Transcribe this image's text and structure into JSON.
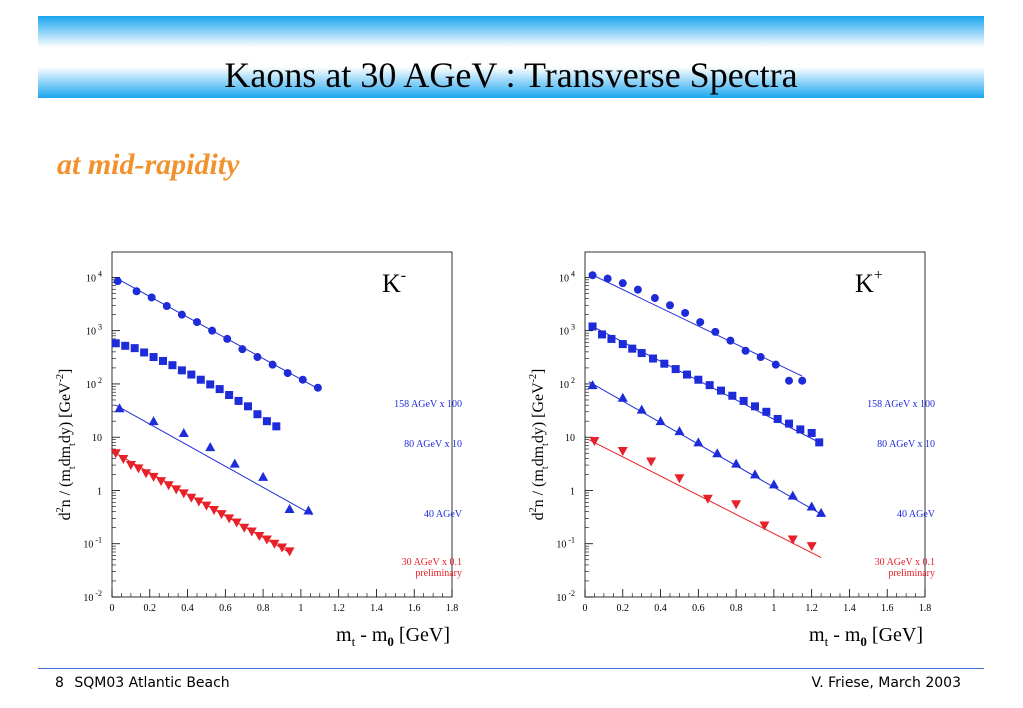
{
  "slide": {
    "title": "Kaons at 30 AGeV : Transverse Spectra",
    "subtitle": "at mid-rapidity",
    "page_number": "8",
    "conference": "SQM03 Atlantic Beach",
    "author_date": "V. Friese, March 2003"
  },
  "colors": {
    "blue": "#1e2bd9",
    "red": "#e8202a",
    "title_gradient": "#1aa5f0",
    "subtitle": "#f0922e"
  },
  "chart_data": [
    {
      "type": "scatter",
      "particle_label": "K",
      "particle_charge": "-",
      "ylabel": "d2n / (mtdmtdy) [GeV-2]",
      "xlabel": "mt - m0 [GeV]",
      "xlim": [
        0,
        1.8
      ],
      "ylim": [
        0.01,
        30000
      ],
      "y_scale": "log",
      "x_ticks": [
        "0",
        "0.2",
        "0.4",
        "0.6",
        "0.8",
        "1",
        "1.2",
        "1.4",
        "1.6",
        "1.8"
      ],
      "y_ticks": [
        {
          "mant": "10",
          "exp": "-2"
        },
        {
          "mant": "10",
          "exp": "-1"
        },
        {
          "mant": "1",
          "exp": ""
        },
        {
          "mant": "10",
          "exp": ""
        },
        {
          "mant": "10",
          "exp": "2"
        },
        {
          "mant": "10",
          "exp": "3"
        },
        {
          "mant": "10",
          "exp": "4"
        }
      ],
      "series": [
        {
          "name": "158 AGeV x 100",
          "marker": "circle",
          "color": "#1e2bd9",
          "x": [
            0.03,
            0.13,
            0.21,
            0.29,
            0.37,
            0.45,
            0.53,
            0.61,
            0.69,
            0.77,
            0.85,
            0.93,
            1.01,
            1.09
          ],
          "y": [
            8500,
            5500,
            4200,
            2900,
            2000,
            1450,
            1000,
            700,
            450,
            320,
            230,
            160,
            120,
            85
          ],
          "fit": [
            [
              0.02,
              9800
            ],
            [
              1.09,
              82
            ]
          ]
        },
        {
          "name": "80 AGeV x 10",
          "marker": "square",
          "color": "#1e2bd9",
          "x": [
            0.02,
            0.07,
            0.12,
            0.17,
            0.22,
            0.27,
            0.32,
            0.37,
            0.42,
            0.47,
            0.52,
            0.57,
            0.62,
            0.67,
            0.72,
            0.77,
            0.82,
            0.87
          ],
          "y": [
            580,
            520,
            470,
            390,
            320,
            270,
            225,
            180,
            150,
            120,
            98,
            80,
            62,
            48,
            38,
            27,
            20,
            16
          ]
        },
        {
          "name": "40 AGeV",
          "marker": "triangle-up",
          "color": "#1e2bd9",
          "x": [
            0.04,
            0.22,
            0.38,
            0.52,
            0.65,
            0.8,
            0.94,
            1.04
          ],
          "y": [
            35,
            20,
            12,
            6.5,
            3.2,
            1.8,
            0.45,
            0.42
          ],
          "fit": [
            [
              0.02,
              40
            ],
            [
              1.06,
              0.35
            ]
          ]
        },
        {
          "name": "30 AGeV x 0.1",
          "note": "preliminary",
          "marker": "triangle-down",
          "color": "#e8202a",
          "x": [
            0.02,
            0.06,
            0.1,
            0.14,
            0.18,
            0.22,
            0.26,
            0.3,
            0.34,
            0.38,
            0.42,
            0.46,
            0.5,
            0.54,
            0.58,
            0.62,
            0.66,
            0.7,
            0.74,
            0.78,
            0.82,
            0.86,
            0.9,
            0.94
          ],
          "y": [
            5,
            3.9,
            3,
            2.6,
            2.1,
            1.8,
            1.5,
            1.25,
            1.05,
            0.88,
            0.73,
            0.62,
            0.52,
            0.43,
            0.36,
            0.3,
            0.25,
            0.2,
            0.17,
            0.14,
            0.12,
            0.1,
            0.085,
            0.072
          ],
          "fit": [
            [
              0.0,
              5.5
            ],
            [
              0.95,
              0.065
            ]
          ]
        }
      ]
    },
    {
      "type": "scatter",
      "particle_label": "K",
      "particle_charge": "+",
      "ylabel": "d2n / (mtdmtdy) [GeV-2]",
      "xlabel": "mt - m0 [GeV]",
      "xlim": [
        0,
        1.8
      ],
      "ylim": [
        0.01,
        30000
      ],
      "y_scale": "log",
      "x_ticks": [
        "0",
        "0.2",
        "0.4",
        "0.6",
        "0.8",
        "1",
        "1.2",
        "1.4",
        "1.6",
        "1.8"
      ],
      "y_ticks": [
        {
          "mant": "10",
          "exp": "-2"
        },
        {
          "mant": "10",
          "exp": "-1"
        },
        {
          "mant": "1",
          "exp": ""
        },
        {
          "mant": "10",
          "exp": ""
        },
        {
          "mant": "10",
          "exp": "2"
        },
        {
          "mant": "10",
          "exp": "3"
        },
        {
          "mant": "10",
          "exp": "4"
        }
      ],
      "series": [
        {
          "name": "158 AGeV x 100",
          "marker": "circle",
          "color": "#1e2bd9",
          "x": [
            0.04,
            0.12,
            0.2,
            0.28,
            0.37,
            0.45,
            0.53,
            0.61,
            0.69,
            0.77,
            0.85,
            0.93,
            1.01,
            1.08,
            1.15
          ],
          "y": [
            11000,
            9500,
            7800,
            5900,
            4100,
            3000,
            2150,
            1450,
            950,
            650,
            420,
            320,
            230,
            115,
            115
          ],
          "fit": [
            [
              0.02,
              12000
            ],
            [
              1.15,
              140
            ]
          ]
        },
        {
          "name": "80 AGeV x 10",
          "marker": "square",
          "color": "#1e2bd9",
          "x": [
            0.04,
            0.09,
            0.14,
            0.2,
            0.25,
            0.3,
            0.36,
            0.42,
            0.48,
            0.54,
            0.6,
            0.66,
            0.72,
            0.78,
            0.84,
            0.9,
            0.96,
            1.02,
            1.08,
            1.14,
            1.2,
            1.24
          ],
          "y": [
            1200,
            850,
            700,
            560,
            460,
            380,
            300,
            240,
            190,
            150,
            120,
            95,
            75,
            60,
            48,
            38,
            30,
            22,
            18,
            14,
            12,
            8
          ],
          "fit": [
            [
              0.02,
              1300
            ],
            [
              1.24,
              8
            ]
          ]
        },
        {
          "name": "40 AGeV",
          "marker": "triangle-up",
          "color": "#1e2bd9",
          "x": [
            0.04,
            0.2,
            0.3,
            0.4,
            0.5,
            0.6,
            0.7,
            0.8,
            0.9,
            1.0,
            1.1,
            1.2,
            1.25
          ],
          "y": [
            95,
            55,
            33,
            20,
            13,
            8,
            5,
            3.2,
            2,
            1.3,
            0.8,
            0.5,
            0.38
          ],
          "fit": [
            [
              0.02,
              110
            ],
            [
              1.25,
              0.36
            ]
          ]
        },
        {
          "name": "30 AGeV x 0.1",
          "note": "preliminary",
          "marker": "triangle-down",
          "color": "#e8202a",
          "x": [
            0.05,
            0.2,
            0.35,
            0.5,
            0.65,
            0.8,
            0.95,
            1.1,
            1.2
          ],
          "y": [
            8.5,
            5.5,
            3.5,
            1.7,
            0.7,
            0.55,
            0.22,
            0.12,
            0.09
          ],
          "fit": [
            [
              0.02,
              9
            ],
            [
              1.25,
              0.055
            ]
          ]
        }
      ]
    }
  ]
}
